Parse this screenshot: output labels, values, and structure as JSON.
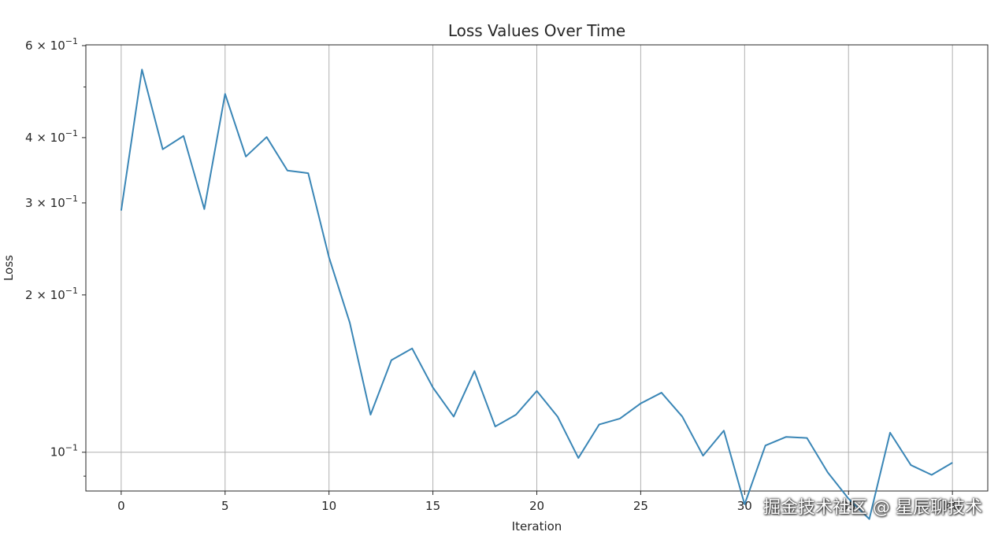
{
  "chart_data": {
    "type": "line",
    "title": "Loss Values Over Time",
    "xlabel": "Iteration",
    "ylabel": "Loss",
    "yscale": "log",
    "grid": true,
    "xlim": [
      -1.7,
      41.7
    ],
    "ylim": [
      0.0843,
      0.602
    ],
    "x_ticks": [
      {
        "value": 0,
        "label": "0"
      },
      {
        "value": 5,
        "label": "5"
      },
      {
        "value": 10,
        "label": "10"
      },
      {
        "value": 15,
        "label": "15"
      },
      {
        "value": 20,
        "label": "20"
      },
      {
        "value": 25,
        "label": "25"
      },
      {
        "value": 30,
        "label": "30"
      },
      {
        "value": 35,
        "label": "35"
      },
      {
        "value": 40,
        "label": "40"
      }
    ],
    "y_ticks": [
      {
        "value": 0.1,
        "base": "10",
        "exp": "−1",
        "prefix": ""
      },
      {
        "value": 0.2,
        "base": "10",
        "exp": "−1",
        "prefix": "2 × "
      },
      {
        "value": 0.3,
        "base": "10",
        "exp": "−1",
        "prefix": "3 × "
      },
      {
        "value": 0.4,
        "base": "10",
        "exp": "−1",
        "prefix": "4 × "
      },
      {
        "value": 0.6,
        "base": "10",
        "exp": "−1",
        "prefix": "6 × "
      }
    ],
    "line_color": "#3a86b6",
    "x": [
      0,
      1,
      2,
      3,
      4,
      5,
      6,
      7,
      8,
      9,
      10,
      11,
      12,
      13,
      14,
      15,
      16,
      17,
      18,
      19,
      20,
      21,
      22,
      23,
      24,
      25,
      26,
      27,
      28,
      29,
      30,
      31,
      32,
      33,
      34,
      35,
      36,
      37,
      38,
      39,
      40
    ],
    "y": [
      0.29,
      0.54,
      0.38,
      0.403,
      0.292,
      0.485,
      0.368,
      0.401,
      0.346,
      0.342,
      0.236,
      0.177,
      0.118,
      0.15,
      0.158,
      0.133,
      0.117,
      0.143,
      0.112,
      0.118,
      0.131,
      0.117,
      0.0975,
      0.113,
      0.116,
      0.124,
      0.13,
      0.117,
      0.0985,
      0.11,
      0.0795,
      0.103,
      0.107,
      0.1065,
      0.0915,
      0.0815,
      0.0745,
      0.109,
      0.0945,
      0.0905,
      0.0955
    ]
  },
  "watermark": "掘金技术社区 @ 星辰聊技术"
}
